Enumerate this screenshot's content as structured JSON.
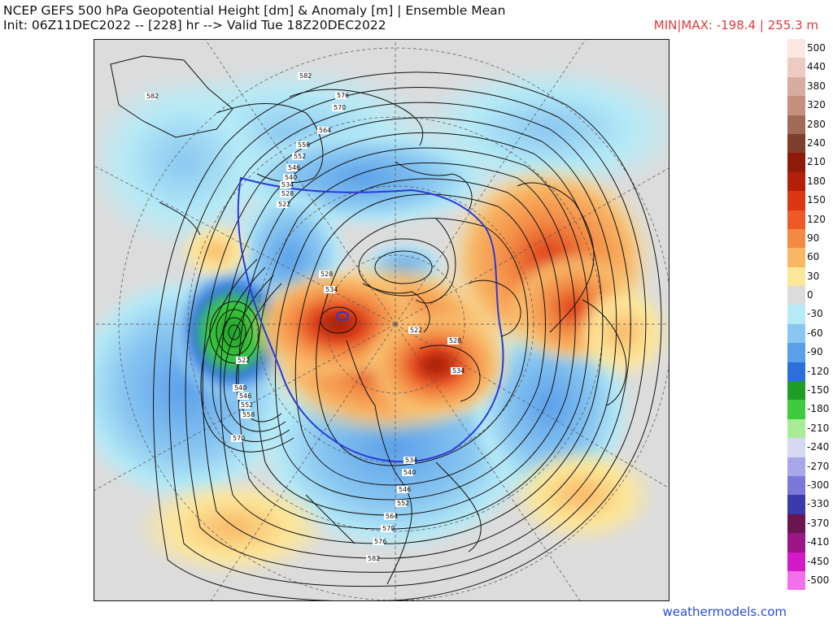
{
  "header": {
    "title_line1": "NCEP GEFS 500 hPa Geopotential Height [dm] & Anomaly [m] | Ensemble Mean",
    "title_line2": "Init: 06Z11DEC2022 -- [228] hr --> Valid Tue 18Z20DEC2022",
    "minmax": "MIN|MAX: -198.4 | 255.3 m",
    "minmax_color": "#e03a3a"
  },
  "map": {
    "projection": "north-polar-stereographic",
    "height_contour_labels": [
      "582",
      "576",
      "570",
      "564",
      "558",
      "552",
      "546",
      "540",
      "534",
      "528",
      "522"
    ],
    "positive_anomaly_centers": [
      "Alaska / Arctic",
      "Greenland / Baffin",
      "Northern Europe / Scandinavia",
      "Central Pacific",
      "Mid Atlantic"
    ],
    "negative_anomaly_centers": [
      "Bering / Western Pacific (strongest, green)",
      "Eastern Canada / Central US",
      "Siberia",
      "Eastern Asia"
    ]
  },
  "colorbar": {
    "entries": [
      {
        "label": "500",
        "color": "#fbe8e2"
      },
      {
        "label": "440",
        "color": "#edcbc2"
      },
      {
        "label": "380",
        "color": "#d9aca0"
      },
      {
        "label": "320",
        "color": "#c58f80"
      },
      {
        "label": "280",
        "color": "#a16a58"
      },
      {
        "label": "240",
        "color": "#7e3f2d"
      },
      {
        "label": "210",
        "color": "#8f1a0a"
      },
      {
        "label": "180",
        "color": "#b31f08"
      },
      {
        "label": "150",
        "color": "#db3613"
      },
      {
        "label": "120",
        "color": "#ec5a28"
      },
      {
        "label": "90",
        "color": "#f38a44"
      },
      {
        "label": "60",
        "color": "#f8b766"
      },
      {
        "label": "30",
        "color": "#fde79a"
      },
      {
        "label": "0",
        "color": "#dcdcdc"
      },
      {
        "label": "-30",
        "color": "#b6eaf6"
      },
      {
        "label": "-60",
        "color": "#89c6f1"
      },
      {
        "label": "-90",
        "color": "#5a9fe9"
      },
      {
        "label": "-120",
        "color": "#2c6fdb"
      },
      {
        "label": "-150",
        "color": "#1e9e28"
      },
      {
        "label": "-180",
        "color": "#3fcb3e"
      },
      {
        "label": "-210",
        "color": "#a8ec98"
      },
      {
        "label": "-240",
        "color": "#d7d8f4"
      },
      {
        "label": "-270",
        "color": "#a8a7ea"
      },
      {
        "label": "-300",
        "color": "#7b78db"
      },
      {
        "label": "-330",
        "color": "#3b3aab"
      },
      {
        "label": "-370",
        "color": "#6a1450"
      },
      {
        "label": "-410",
        "color": "#9c1688"
      },
      {
        "label": "-450",
        "color": "#d41ac7"
      },
      {
        "label": "-500",
        "color": "#f270e9"
      }
    ]
  },
  "footer": {
    "credit": "weathermodels.com"
  }
}
